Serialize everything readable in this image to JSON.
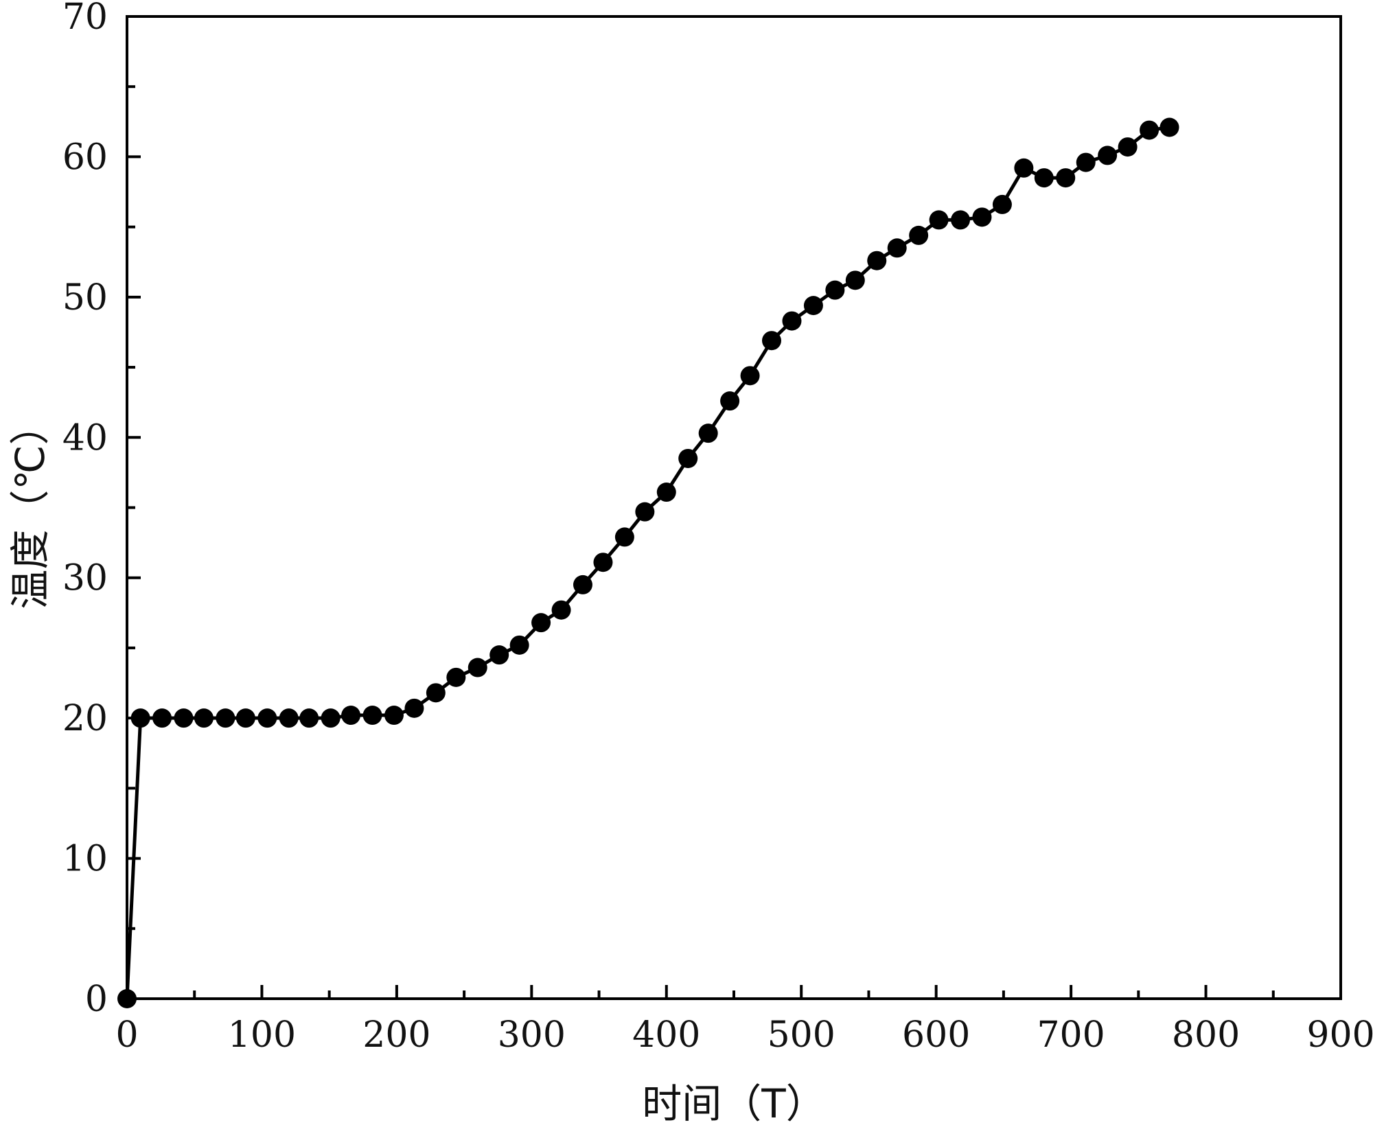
{
  "chart_data": {
    "type": "line",
    "title": "",
    "xlabel": "时间（T）",
    "ylabel": "温度（℃）",
    "xlim": [
      0,
      900
    ],
    "ylim": [
      0,
      70
    ],
    "x_ticks": [
      "0",
      "100",
      "200",
      "300",
      "400",
      "500",
      "600",
      "700",
      "800",
      "900"
    ],
    "y_ticks": [
      "0",
      "10",
      "20",
      "30",
      "40",
      "50",
      "60",
      "70"
    ],
    "grid": false,
    "legend": "none",
    "marker": "filled-circle",
    "line_color": "#000000",
    "series": [
      {
        "x": [
          0,
          10,
          26,
          42,
          57,
          73,
          88,
          104,
          120,
          135,
          151,
          166,
          182,
          198,
          213,
          229,
          244,
          260,
          276,
          291,
          307,
          322,
          338,
          353,
          369,
          384,
          400,
          416,
          431,
          447,
          462,
          478,
          493,
          509,
          525,
          540,
          556,
          571,
          587,
          602,
          618,
          634,
          649,
          665,
          680,
          696,
          711,
          727,
          742,
          758,
          773
        ],
        "y": [
          0,
          20,
          20,
          20,
          20,
          20,
          20,
          20,
          20,
          20,
          20,
          20.2,
          20.2,
          20.2,
          20.7,
          21.8,
          22.9,
          23.6,
          24.5,
          25.2,
          26.8,
          27.7,
          29.5,
          31.1,
          32.9,
          34.7,
          36.1,
          38.5,
          40.3,
          42.6,
          44.4,
          46.9,
          48.3,
          49.4,
          50.5,
          51.2,
          52.6,
          53.5,
          54.4,
          55.5,
          55.5,
          55.7,
          56.6,
          59.2,
          58.5,
          58.5,
          59.6,
          60.1,
          60.7,
          61.9,
          62.1
        ]
      }
    ]
  }
}
